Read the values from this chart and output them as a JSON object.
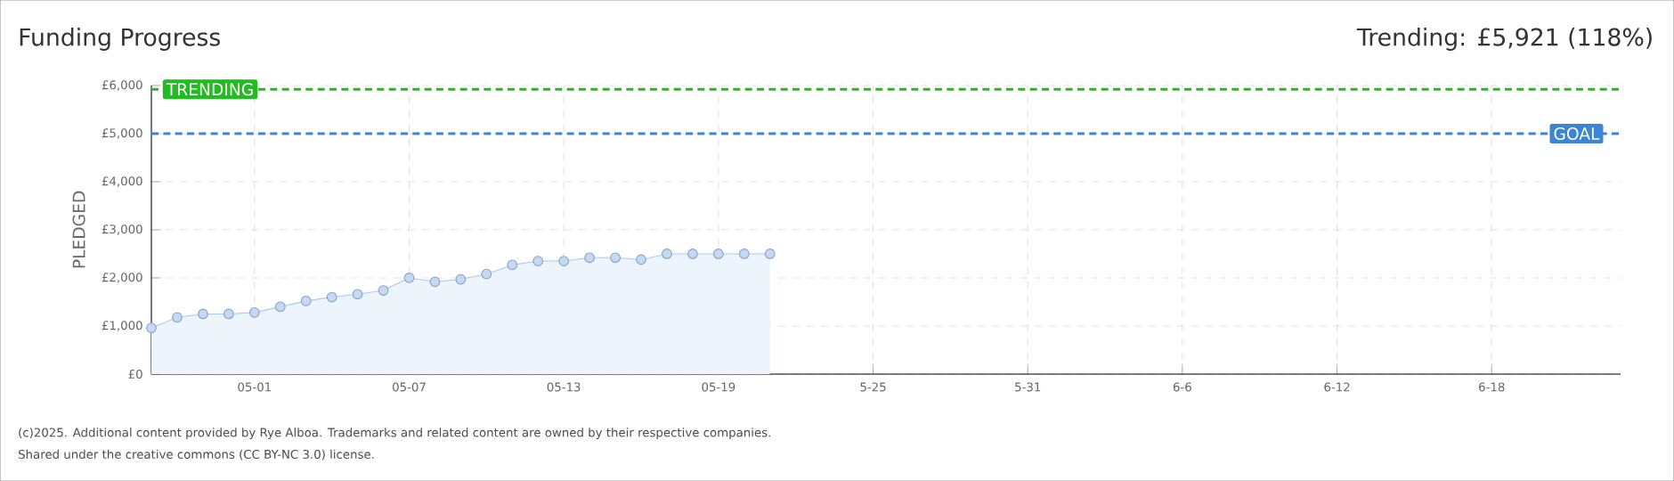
{
  "chart_data": {
    "type": "area",
    "title": "Funding Progress",
    "subtitle": "Trending: £5,921 (118%)",
    "ylabel": "PLEDGED",
    "x": [
      "2025-04-27",
      "2025-04-28",
      "2025-04-29",
      "2025-04-30",
      "2025-05-01",
      "2025-05-02",
      "2025-05-03",
      "2025-05-04",
      "2025-05-05",
      "2025-05-06",
      "2025-05-07",
      "2025-05-08",
      "2025-05-09",
      "2025-05-10",
      "2025-05-11",
      "2025-05-12",
      "2025-05-13",
      "2025-05-14",
      "2025-05-15",
      "2025-05-16",
      "2025-05-17",
      "2025-05-18",
      "2025-05-19",
      "2025-05-20",
      "2025-05-21"
    ],
    "series": [
      {
        "color": "#a9c9ef",
        "values": [
          960,
          1180,
          1250,
          1250,
          1280,
          1400,
          1520,
          1600,
          1660,
          1740,
          2000,
          1920,
          1970,
          2080,
          2270,
          2350,
          2350,
          2420,
          2420,
          2380,
          2500,
          2500,
          2500,
          2500,
          2500
        ]
      }
    ],
    "xlim": [
      "2025-04-27",
      "2025-06-23"
    ],
    "xticks": [
      {
        "value": "2025-05-01",
        "label": "05-01"
      },
      {
        "value": "2025-05-07",
        "label": "05-07"
      },
      {
        "value": "2025-05-13",
        "label": "05-13"
      },
      {
        "value": "2025-05-19",
        "label": "05-19"
      },
      {
        "value": "2025-05-25",
        "label": "5-25"
      },
      {
        "value": "2025-05-31",
        "label": "5-31"
      },
      {
        "value": "2025-06-06",
        "label": "6-6"
      },
      {
        "value": "2025-06-12",
        "label": "6-12"
      },
      {
        "value": "2025-06-18",
        "label": "6-18"
      }
    ],
    "ylim": [
      0,
      6000
    ],
    "yticks": [
      {
        "value": 0,
        "label": "£0"
      },
      {
        "value": 1000,
        "label": "£1,000"
      },
      {
        "value": 2000,
        "label": "£2,000"
      },
      {
        "value": 3000,
        "label": "£3,000"
      },
      {
        "value": 4000,
        "label": "£4,000"
      },
      {
        "value": 5000,
        "label": "£5,000"
      },
      {
        "value": 6000,
        "label": "£6,000"
      }
    ],
    "ref_lines": [
      {
        "axis": "y",
        "value": 5921,
        "label": "TRENDING",
        "color": "#22bb22",
        "line_style": "dashed"
      },
      {
        "axis": "y",
        "value": 5000,
        "label": "GOAL",
        "color": "#3a86d4",
        "line_style": "dashed"
      }
    ],
    "grid": true,
    "marker": "circle",
    "annotations": [
      "(c)2025. Additional content provided by Rye Alboa. Trademarks and related content are owned by their respective companies.",
      "Shared under the creative commons (CC BY-NC 3.0) license."
    ]
  }
}
